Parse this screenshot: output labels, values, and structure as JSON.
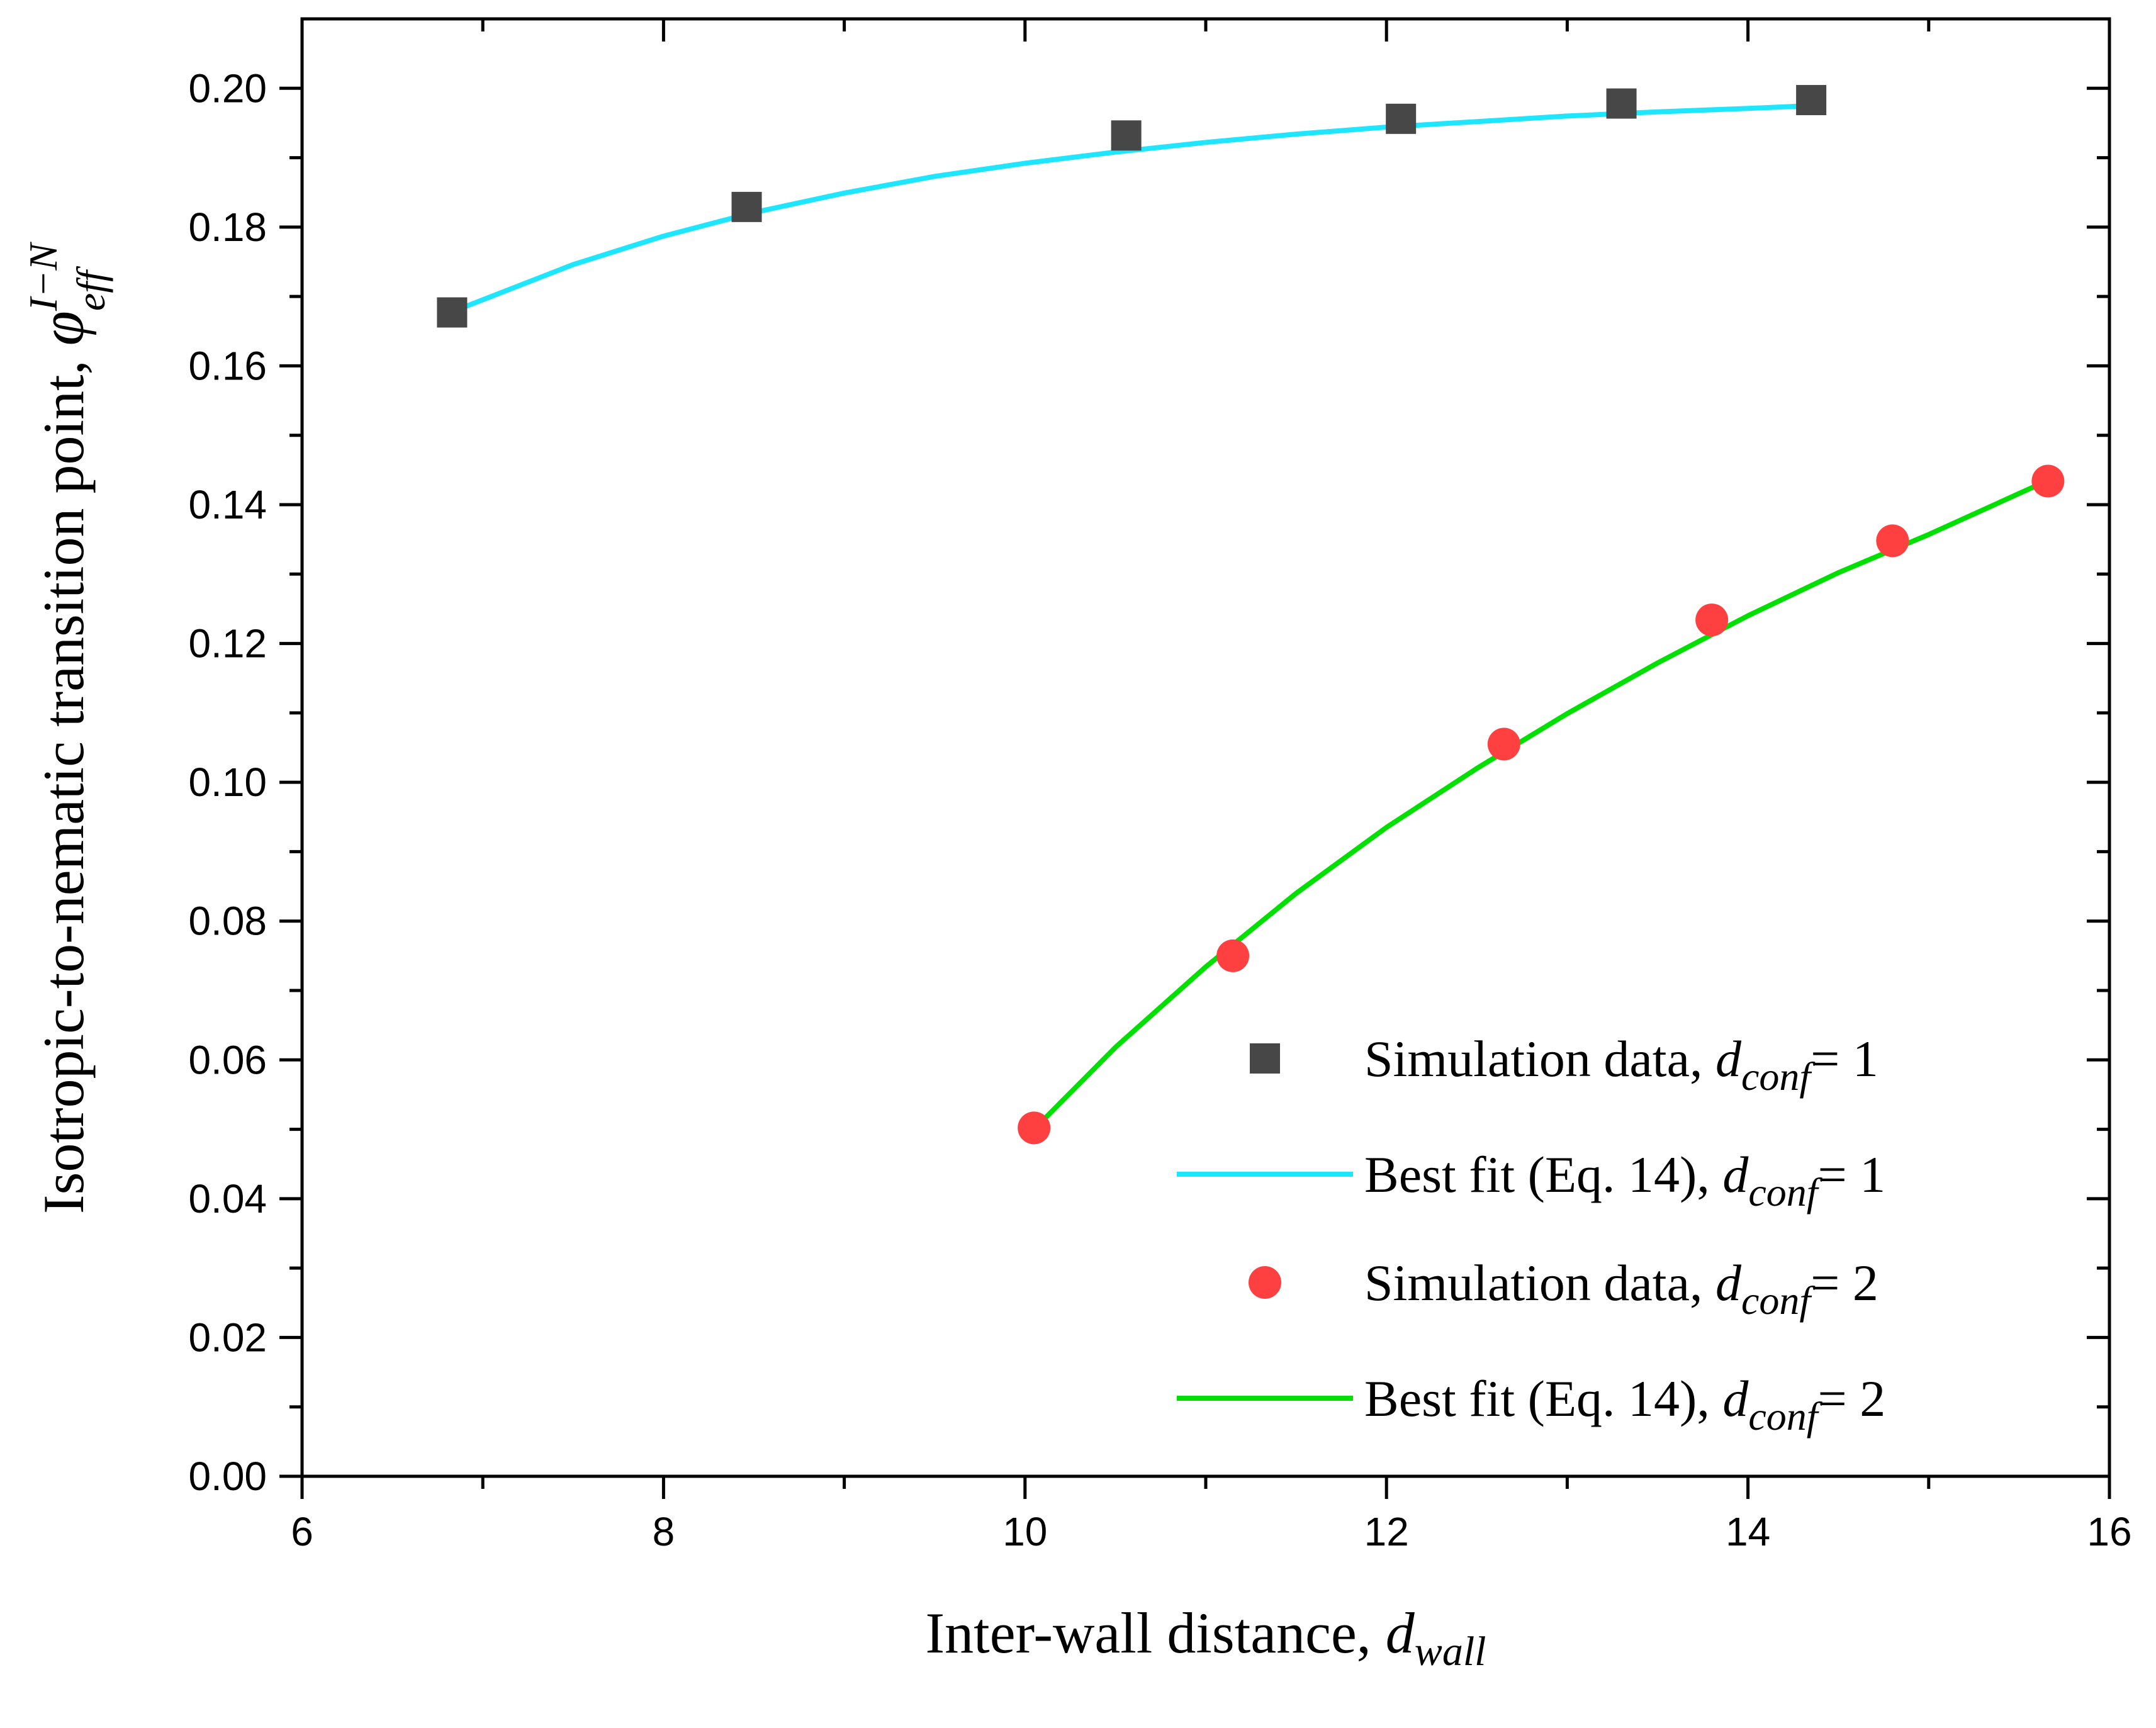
{
  "chart_data": {
    "type": "scatter",
    "title": "",
    "xlabel": {
      "main": "Inter-wall distance, ",
      "symbol": "d",
      "subscript": "wall"
    },
    "ylabel": {
      "main": "Isotropic-to-nematic transition point, ",
      "symbol": "φ",
      "subscript": "eff",
      "superscript": "I−N"
    },
    "xlim": [
      6,
      16
    ],
    "ylim": [
      0,
      0.21
    ],
    "x_ticks": [
      6,
      8,
      10,
      12,
      14,
      16
    ],
    "x_tick_labels": [
      "6",
      "8",
      "10",
      "12",
      "14",
      "16"
    ],
    "y_ticks": [
      0,
      0.02,
      0.04,
      0.06,
      0.08,
      0.1,
      0.12,
      0.14,
      0.16,
      0.18,
      0.2
    ],
    "y_tick_labels": [
      "0.00",
      "0.02",
      "0.04",
      "0.06",
      "0.08",
      "0.10",
      "0.12",
      "0.14",
      "0.16",
      "0.18",
      "0.20"
    ],
    "grid": false,
    "legend_position": "bottom-right",
    "series": [
      {
        "name": "Simulation data, d_conf = 1",
        "kind": "markers",
        "marker": "square",
        "color": "#474747",
        "x": [
          6.83,
          8.46,
          10.56,
          12.08,
          13.3,
          14.35
        ],
        "y": [
          0.1677,
          0.1829,
          0.1932,
          0.1956,
          0.1978,
          0.1983
        ]
      },
      {
        "name": "Best fit (Eq. 14), d_conf = 1",
        "kind": "line",
        "color": "#1ee6ff",
        "x": [
          6.83,
          7.5,
          8.0,
          8.5,
          9.0,
          9.5,
          10.0,
          10.5,
          11.0,
          11.5,
          12.0,
          12.5,
          13.0,
          13.5,
          14.0,
          14.35
        ],
        "y": [
          0.1678,
          0.1746,
          0.1787,
          0.1821,
          0.1849,
          0.1873,
          0.1892,
          0.1908,
          0.1922,
          0.1934,
          0.1944,
          0.1952,
          0.196,
          0.1966,
          0.1971,
          0.1975
        ]
      },
      {
        "name": "Simulation data, d_conf = 2",
        "kind": "markers",
        "marker": "circle",
        "color": "#ff4040",
        "x": [
          10.05,
          11.15,
          12.65,
          13.8,
          14.8,
          15.66
        ],
        "y": [
          0.0502,
          0.075,
          0.1055,
          0.1234,
          0.1348,
          0.1434
        ]
      },
      {
        "name": "Best fit (Eq. 14), d_conf = 2",
        "kind": "line",
        "color": "#00e000",
        "x": [
          10.05,
          10.5,
          11.0,
          11.5,
          12.0,
          12.5,
          13.0,
          13.5,
          14.0,
          14.5,
          15.0,
          15.66
        ],
        "y": [
          0.05,
          0.0618,
          0.0734,
          0.084,
          0.0935,
          0.102,
          0.1099,
          0.1172,
          0.124,
          0.1302,
          0.1357,
          0.1435
        ]
      }
    ],
    "legend": [
      {
        "marker": "square",
        "color": "#474747",
        "text": "Simulation data, ",
        "symbol": "d",
        "subscript": "conf",
        "suffix": "= 1"
      },
      {
        "marker": "line",
        "color": "#1ee6ff",
        "text": "Best fit (Eq. 14), ",
        "symbol": "d",
        "subscript": "conf",
        "suffix": "= 1"
      },
      {
        "marker": "circle",
        "color": "#ff4040",
        "text": "Simulation data, ",
        "symbol": "d",
        "subscript": "conf",
        "suffix": "= 2"
      },
      {
        "marker": "line",
        "color": "#00e000",
        "text": "Best fit (Eq. 14), ",
        "symbol": "d",
        "subscript": "conf",
        "suffix": "= 2"
      }
    ]
  }
}
